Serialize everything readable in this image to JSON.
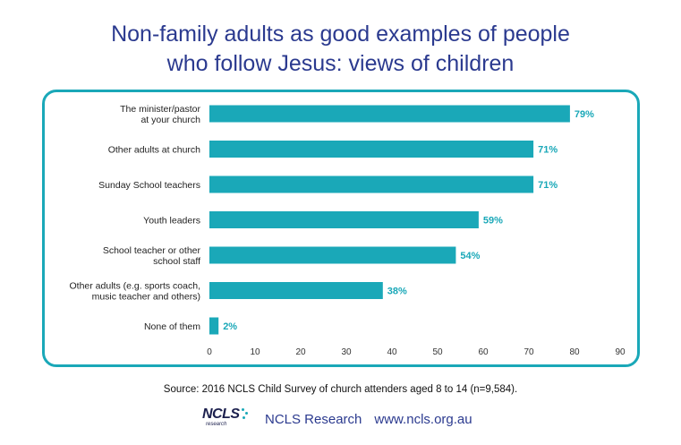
{
  "title": {
    "line1": "Non-family adults as good examples of people",
    "line2": "who follow Jesus: views of children"
  },
  "chart_data": {
    "type": "bar",
    "orientation": "horizontal",
    "categories": [
      [
        "The minister/pastor",
        "at your church"
      ],
      [
        "Other adults at church"
      ],
      [
        "Sunday School teachers"
      ],
      [
        "Youth leaders"
      ],
      [
        "School teacher or other",
        "school staff"
      ],
      [
        "Other adults (e.g. sports coach,",
        "music teacher and others)"
      ],
      [
        "None of them"
      ]
    ],
    "values": [
      79,
      71,
      71,
      59,
      54,
      38,
      2
    ],
    "value_labels": [
      "79%",
      "71%",
      "71%",
      "59%",
      "54%",
      "38%",
      "2%"
    ],
    "xlim": [
      0,
      90
    ],
    "xticks": [
      0,
      10,
      20,
      30,
      40,
      50,
      60,
      70,
      80,
      90
    ],
    "grid": false,
    "bar_color": "#1aa8b8",
    "label_color": "#1aa8b8"
  },
  "source": "Source: 2016 NCLS Child Survey of church attenders aged 8 to 14 (n=9,584).",
  "footer": {
    "logo_word": "NCLS",
    "logo_sub": "research",
    "org_name": "NCLS Research",
    "url": "www.ncls.org.au"
  },
  "colors": {
    "title": "#2b3a8f",
    "accent": "#1aa8b8"
  }
}
